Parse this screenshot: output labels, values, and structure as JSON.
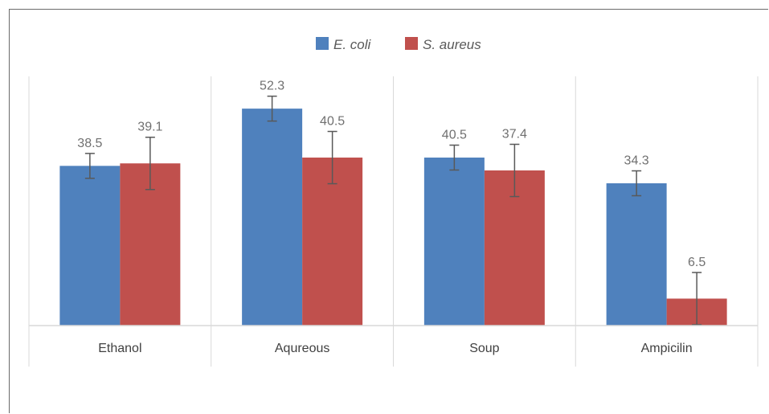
{
  "chart_data": {
    "type": "bar",
    "categories": [
      "Ethanol",
      "Aqureous",
      "Soup",
      "Ampicilin"
    ],
    "series": [
      {
        "name": "E. coli",
        "color": "#4f81bd",
        "values": [
          38.5,
          52.3,
          40.5,
          34.3
        ],
        "errors": [
          3.0,
          3.0,
          3.0,
          3.0
        ]
      },
      {
        "name": "S. aureus",
        "color": "#c0504d",
        "values": [
          39.1,
          40.5,
          37.4,
          6.5
        ],
        "errors": [
          6.3,
          6.3,
          6.3,
          6.3
        ]
      }
    ],
    "title": "",
    "xlabel": "",
    "ylabel": "",
    "ylim": [
      0,
      60
    ],
    "grid": "vertical-separators",
    "legend": "top-center",
    "data_labels": true,
    "error_color": "#595959"
  }
}
